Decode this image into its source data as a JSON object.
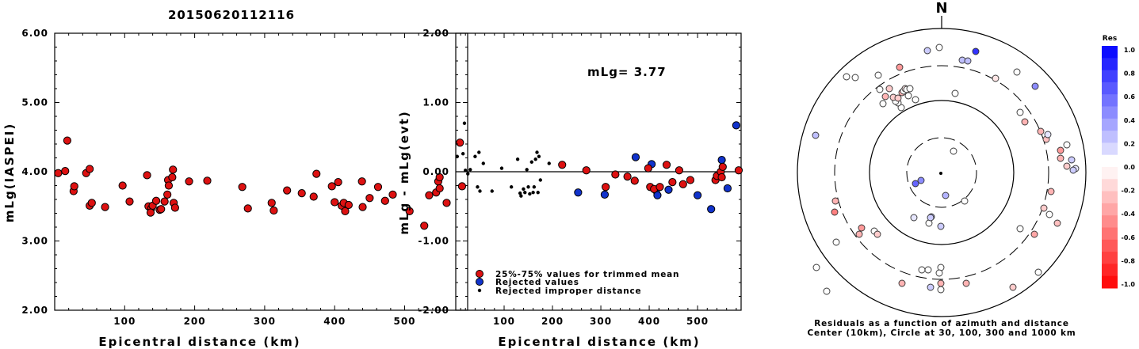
{
  "title": "20150620112116",
  "colors": {
    "accepted": "#dd1111",
    "rejected": "#1133cc",
    "improper": "#000000"
  },
  "chart_data": [
    {
      "type": "scatter",
      "ylabel": "mLg(IASPEI)",
      "xlabel": "Epicentral distance (km)",
      "xlim": [
        0,
        590
      ],
      "ylim": [
        2.0,
        6.0
      ],
      "x_ticks": [
        "100",
        "200",
        "300",
        "400",
        "500"
      ],
      "y_ticks": [
        "2.00",
        "3.00",
        "4.00",
        "5.00",
        "6.00"
      ],
      "series": [
        {
          "points": [
            [
              5,
              3.98
            ],
            [
              15,
              4.01
            ],
            [
              18,
              4.45
            ],
            [
              27,
              3.72
            ],
            [
              28,
              3.79
            ],
            [
              45,
              3.98
            ],
            [
              50,
              4.04
            ],
            [
              50,
              3.51
            ],
            [
              53,
              3.55
            ],
            [
              72,
              3.49
            ],
            [
              97,
              3.8
            ],
            [
              107,
              3.57
            ],
            [
              132,
              3.95
            ],
            [
              134,
              3.5
            ],
            [
              138,
              3.47
            ],
            [
              137,
              3.41
            ],
            [
              140,
              3.51
            ],
            [
              145,
              3.58
            ],
            [
              150,
              3.45
            ],
            [
              152,
              3.46
            ],
            [
              157,
              3.57
            ],
            [
              162,
              3.88
            ],
            [
              161,
              3.67
            ],
            [
              163,
              3.8
            ],
            [
              168,
              3.92
            ],
            [
              169,
              4.03
            ],
            [
              170,
              3.55
            ],
            [
              172,
              3.48
            ],
            [
              192,
              3.86
            ],
            [
              218,
              3.87
            ],
            [
              268,
              3.78
            ],
            [
              276,
              3.47
            ],
            [
              310,
              3.55
            ],
            [
              313,
              3.44
            ],
            [
              332,
              3.73
            ],
            [
              353,
              3.69
            ],
            [
              370,
              3.64
            ],
            [
              374,
              3.97
            ],
            [
              396,
              3.79
            ],
            [
              400,
              3.56
            ],
            [
              405,
              3.85
            ],
            [
              410,
              3.51
            ],
            [
              413,
              3.55
            ],
            [
              415,
              3.43
            ],
            [
              420,
              3.52
            ],
            [
              439,
              3.86
            ],
            [
              440,
              3.49
            ],
            [
              450,
              3.62
            ],
            [
              462,
              3.78
            ],
            [
              472,
              3.58
            ],
            [
              483,
              3.67
            ],
            [
              507,
              3.43
            ],
            [
              528,
              3.22
            ],
            [
              535,
              3.66
            ],
            [
              545,
              3.7
            ],
            [
              548,
              3.86
            ],
            [
              550,
              3.92
            ],
            [
              550,
              3.76
            ],
            [
              560,
              3.55
            ],
            [
              579,
              4.42
            ],
            [
              582,
              3.79
            ]
          ]
        }
      ]
    },
    {
      "type": "scatter",
      "ylabel": "mLg - mLg(evt)",
      "xlabel": "Epicentral distance (km)",
      "annotation": "mLg= 3.77",
      "xlim": [
        0,
        590
      ],
      "ylim": [
        -2.0,
        2.0
      ],
      "x_ticks": [
        "100",
        "200",
        "300",
        "400",
        "500"
      ],
      "y_ticks": [
        "-2.00",
        "-1.00",
        "0.00",
        "1.00",
        "2.00"
      ],
      "legend": [
        "25%-75% values for trimmed mean",
        "Rejected values",
        "Rejected improper distance"
      ],
      "series": [
        {
          "name": "25%-75% values for trimmed mean",
          "points": [
            [
              220,
              0.1
            ],
            [
              270,
              0.02
            ],
            [
              310,
              -0.22
            ],
            [
              330,
              -0.04
            ],
            [
              355,
              -0.07
            ],
            [
              370,
              -0.13
            ],
            [
              398,
              0.05
            ],
            [
              402,
              -0.22
            ],
            [
              410,
              -0.25
            ],
            [
              422,
              -0.22
            ],
            [
              436,
              0.1
            ],
            [
              448,
              -0.15
            ],
            [
              462,
              0.02
            ],
            [
              470,
              -0.18
            ],
            [
              485,
              -0.12
            ],
            [
              537,
              -0.12
            ],
            [
              540,
              -0.06
            ],
            [
              548,
              0.0
            ],
            [
              550,
              -0.08
            ],
            [
              552,
              0.07
            ],
            [
              585,
              0.02
            ]
          ]
        },
        {
          "name": "Rejected values",
          "points": [
            [
              253,
              -0.3
            ],
            [
              308,
              -0.33
            ],
            [
              372,
              0.21
            ],
            [
              405,
              0.11
            ],
            [
              414,
              -0.27
            ],
            [
              417,
              -0.34
            ],
            [
              440,
              -0.26
            ],
            [
              500,
              -0.34
            ],
            [
              528,
              -0.54
            ],
            [
              550,
              0.17
            ],
            [
              562,
              -0.24
            ],
            [
              580,
              0.67
            ]
          ]
        },
        {
          "name": "Rejected improper distance",
          "points": [
            [
              3,
              0.22
            ],
            [
              15,
              0.26
            ],
            [
              18,
              0.7
            ],
            [
              20,
              0.02
            ],
            [
              25,
              -0.03
            ],
            [
              30,
              0.03
            ],
            [
              40,
              0.22
            ],
            [
              45,
              -0.22
            ],
            [
              48,
              0.28
            ],
            [
              50,
              -0.28
            ],
            [
              57,
              0.12
            ],
            [
              75,
              -0.28
            ],
            [
              95,
              0.05
            ],
            [
              115,
              -0.22
            ],
            [
              128,
              0.18
            ],
            [
              133,
              -0.31
            ],
            [
              135,
              -0.35
            ],
            [
              140,
              -0.25
            ],
            [
              143,
              -0.3
            ],
            [
              147,
              0.03
            ],
            [
              150,
              -0.22
            ],
            [
              153,
              -0.32
            ],
            [
              157,
              0.14
            ],
            [
              160,
              -0.3
            ],
            [
              162,
              -0.22
            ],
            [
              165,
              0.18
            ],
            [
              168,
              0.28
            ],
            [
              170,
              -0.3
            ],
            [
              172,
              0.22
            ],
            [
              175,
              -0.12
            ],
            [
              193,
              0.12
            ]
          ]
        }
      ]
    },
    {
      "type": "scatter",
      "north_label": "N",
      "caption": [
        "Residuals as a function of azimuth and distance",
        "Center (10km), Circle at 30, 100, 300 and 1000 km"
      ],
      "colorbar_title": "Res",
      "colorbar_ticks": [
        "1.0",
        "0.8",
        "0.6",
        "0.4",
        "0.2",
        "0.0",
        "-0.2",
        "-0.4",
        "-0.6",
        "-0.8",
        "-1.0"
      ],
      "colorbar_range": [
        -1.0,
        1.0
      ],
      "points": [
        {
          "dx": -1,
          "dy": 1,
          "v": 0.0,
          "improper": true
        },
        {
          "dx": -26,
          "dy": 10,
          "v": 0.45
        },
        {
          "dx": 15,
          "dy": -27,
          "v": 0.0
        },
        {
          "dx": 5,
          "dy": 29,
          "v": 0.3
        },
        {
          "dx": -13,
          "dy": 56,
          "v": 0.25
        },
        {
          "dx": -16,
          "dy": 64,
          "v": 0.0
        },
        {
          "dx": -35,
          "dy": 57,
          "v": 0.1
        },
        {
          "dx": 29,
          "dy": 36,
          "v": 0.0
        },
        {
          "dx": -51,
          "dy": -82,
          "v": 0.0
        },
        {
          "dx": -55,
          "dy": -88,
          "v": 0.0
        },
        {
          "dx": 17,
          "dy": -100,
          "v": 0.0
        },
        {
          "dx": 68,
          "dy": -119,
          "v": -0.1
        },
        {
          "dx": 99,
          "dy": -76,
          "v": 0.0
        },
        {
          "dx": 105,
          "dy": -64,
          "v": -0.3
        },
        {
          "dx": -134,
          "dy": 36,
          "v": -0.3
        },
        {
          "dx": -135,
          "dy": 50,
          "v": -0.5
        },
        {
          "dx": -85,
          "dy": 74,
          "v": 0.0
        },
        {
          "dx": -81,
          "dy": 78,
          "v": -0.2
        },
        {
          "dx": 99,
          "dy": 71,
          "v": 0.0
        },
        {
          "dx": 117,
          "dy": 78,
          "v": -0.35
        },
        {
          "dx": 90,
          "dy": 145,
          "v": -0.2
        },
        {
          "dx": 122,
          "dy": 126,
          "v": 0.0
        },
        {
          "dx": 136,
          "dy": 53,
          "v": 0.0
        },
        {
          "dx": 138,
          "dy": 24,
          "v": -0.3
        },
        {
          "dx": 146,
          "dy": 64,
          "v": -0.25
        },
        {
          "dx": 129,
          "dy": 45,
          "v": -0.2
        },
        {
          "dx": 132,
          "dy": -42,
          "v": -0.25
        },
        {
          "dx": 125,
          "dy": -52,
          "v": -0.3
        },
        {
          "dx": 134,
          "dy": -48,
          "v": 0.1
        },
        {
          "dx": 150,
          "dy": -18,
          "v": -0.3
        },
        {
          "dx": 164,
          "dy": -16,
          "v": 0.2
        },
        {
          "dx": 169,
          "dy": -5,
          "v": 0.1
        },
        {
          "dx": 166,
          "dy": -3,
          "v": 0.2
        },
        {
          "dx": 158,
          "dy": -8,
          "v": -0.2
        },
        {
          "dx": 150,
          "dy": -28,
          "v": -0.4
        },
        {
          "dx": 158,
          "dy": -35,
          "v": 0.0
        },
        {
          "dx": -50,
          "dy": -101,
          "v": -0.3
        },
        {
          "dx": -42,
          "dy": -97,
          "v": 0.0
        },
        {
          "dx": -58,
          "dy": -90,
          "v": 0.0
        },
        {
          "dx": -61,
          "dy": -95,
          "v": -0.2
        },
        {
          "dx": -55,
          "dy": -94,
          "v": -0.2
        },
        {
          "dx": -48,
          "dy": -103,
          "v": 0.0
        },
        {
          "dx": -46,
          "dy": -106,
          "v": -0.1
        },
        {
          "dx": -44,
          "dy": -105,
          "v": 0.0
        },
        {
          "dx": -66,
          "dy": -106,
          "v": -0.2
        },
        {
          "dx": -74,
          "dy": -87,
          "v": 0.0
        },
        {
          "dx": -71,
          "dy": -96,
          "v": -0.3
        },
        {
          "dx": -80,
          "dy": -123,
          "v": 0.0
        },
        {
          "dx": -53,
          "dy": -133,
          "v": -0.4
        },
        {
          "dx": -3,
          "dy": -158,
          "v": 0.0
        },
        {
          "dx": -18,
          "dy": -154,
          "v": 0.2
        },
        {
          "dx": 26,
          "dy": -142,
          "v": 0.25
        },
        {
          "dx": 33,
          "dy": -141,
          "v": 0.25
        },
        {
          "dx": 43,
          "dy": -153,
          "v": 0.8
        },
        {
          "dx": 95,
          "dy": -127,
          "v": 0.0
        },
        {
          "dx": 118,
          "dy": -109,
          "v": 0.45
        },
        {
          "dx": -120,
          "dy": -121,
          "v": 0.0
        },
        {
          "dx": -159,
          "dy": -47,
          "v": 0.25
        },
        {
          "dx": -33,
          "dy": -92,
          "v": 0.0
        },
        {
          "dx": -40,
          "dy": -106,
          "v": 0.0
        },
        {
          "dx": -109,
          "dy": -120,
          "v": 0.0
        },
        {
          "dx": -78,
          "dy": -105,
          "v": 0.0
        },
        {
          "dx": -33,
          "dy": 14,
          "v": 0.6
        },
        {
          "dx": -14,
          "dy": 57,
          "v": 0.2
        },
        {
          "dx": -1,
          "dy": 68,
          "v": 0.2
        },
        {
          "dx": -101,
          "dy": 70,
          "v": -0.4
        },
        {
          "dx": -104,
          "dy": 78,
          "v": -0.3
        },
        {
          "dx": -1,
          "dy": 120,
          "v": 0.0
        },
        {
          "dx": -17,
          "dy": 123,
          "v": 0.0
        },
        {
          "dx": -3,
          "dy": 127,
          "v": 0.0
        },
        {
          "dx": -50,
          "dy": 140,
          "v": -0.3
        },
        {
          "dx": -1,
          "dy": 140,
          "v": -0.3
        },
        {
          "dx": -14,
          "dy": 145,
          "v": 0.2
        },
        {
          "dx": -1,
          "dy": 148,
          "v": 0.0
        },
        {
          "dx": 31,
          "dy": 140,
          "v": -0.3
        },
        {
          "dx": -25,
          "dy": 123,
          "v": 0.0
        },
        {
          "dx": -158,
          "dy": 120,
          "v": 0.0
        },
        {
          "dx": -133,
          "dy": 88,
          "v": 0.0
        },
        {
          "dx": -145,
          "dy": 150,
          "v": 0.0
        }
      ]
    }
  ]
}
